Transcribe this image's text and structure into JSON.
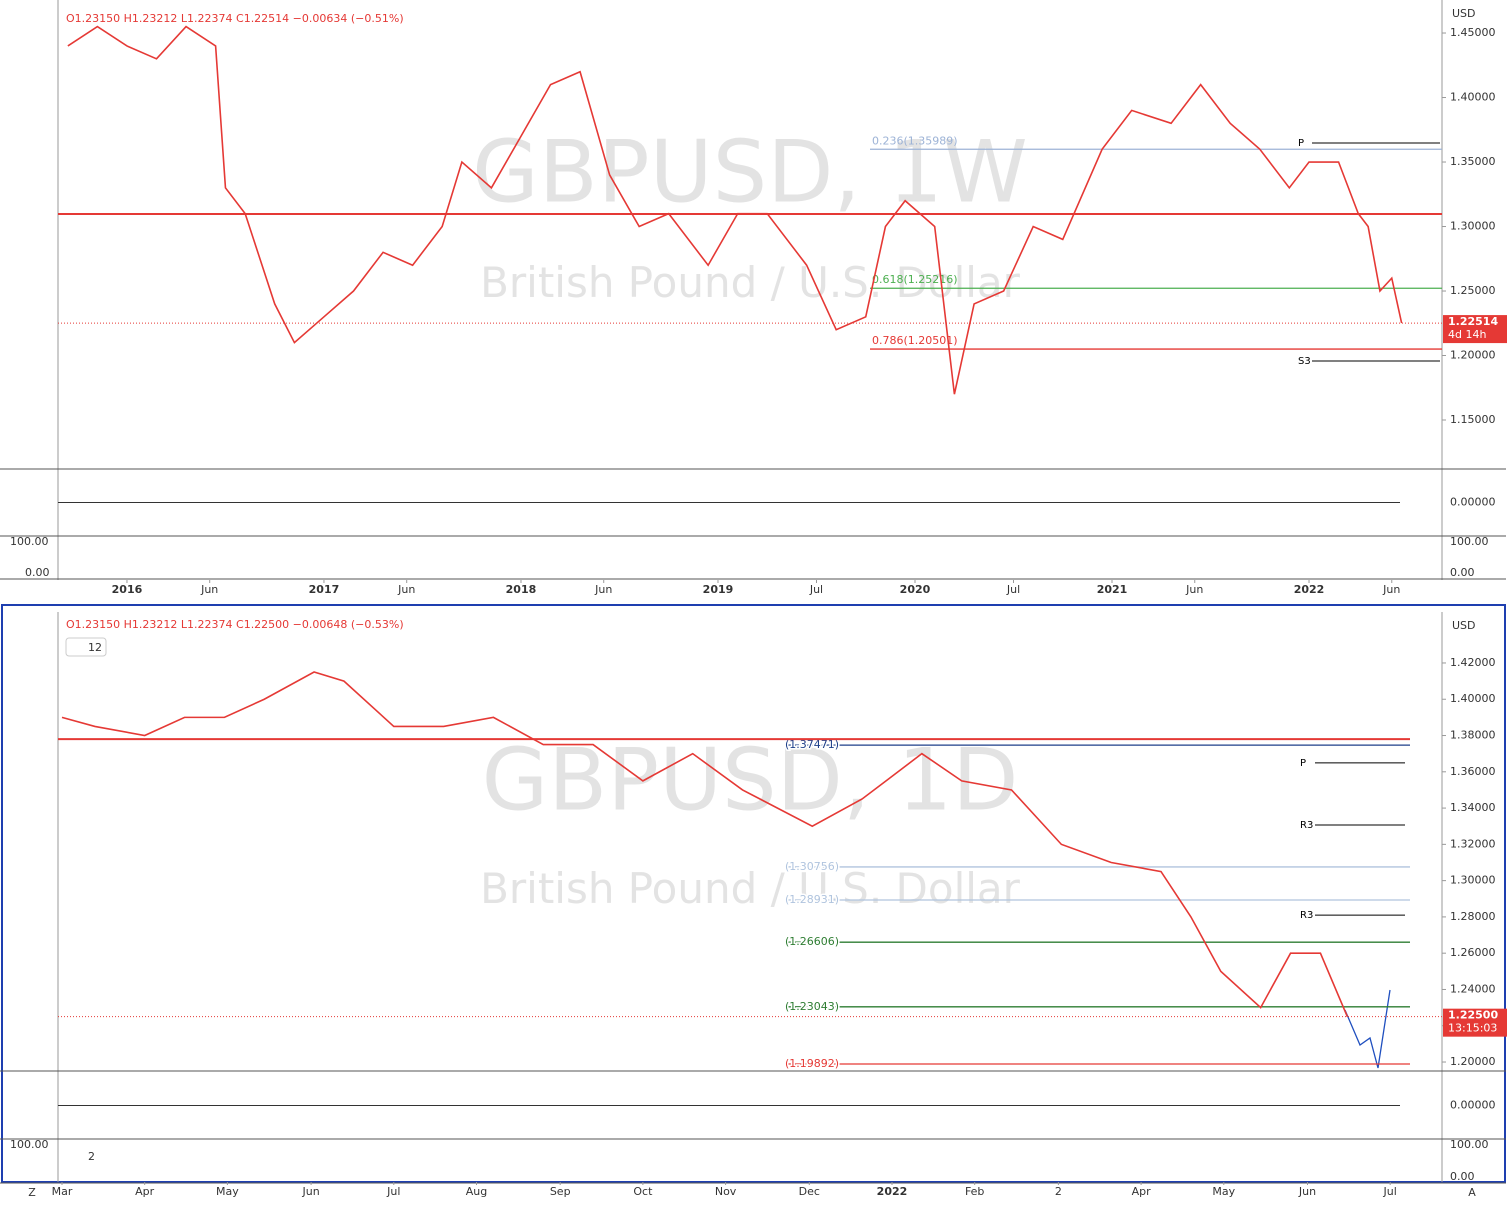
{
  "chart_data": [
    {
      "type": "line",
      "ohlc": "O1.23150 H1.23212 L1.22374 C1.22514 −0.00634 (−0.51%)",
      "watermark": "GBPUSD, 1W",
      "subtitle": "British Pound / U.S. Dollar",
      "currency": "USD",
      "color": "#e53935",
      "x": [
        2015.7,
        2015.85,
        2016.0,
        2016.15,
        2016.3,
        2016.45,
        2016.5,
        2016.6,
        2016.75,
        2016.85,
        2017.0,
        2017.15,
        2017.3,
        2017.45,
        2017.6,
        2017.7,
        2017.85,
        2018.0,
        2018.15,
        2018.3,
        2018.45,
        2018.6,
        2018.75,
        2018.95,
        2019.1,
        2019.25,
        2019.45,
        2019.6,
        2019.75,
        2019.85,
        2019.95,
        2020.1,
        2020.2,
        2020.3,
        2020.45,
        2020.6,
        2020.75,
        2020.95,
        2021.1,
        2021.3,
        2021.45,
        2021.6,
        2021.75,
        2021.9,
        2022.0,
        2022.15,
        2022.25,
        2022.3,
        2022.36,
        2022.42,
        2022.47
      ],
      "values": [
        1.44,
        1.455,
        1.44,
        1.43,
        1.455,
        1.44,
        1.33,
        1.31,
        1.24,
        1.21,
        1.23,
        1.25,
        1.28,
        1.27,
        1.3,
        1.35,
        1.33,
        1.37,
        1.41,
        1.42,
        1.34,
        1.3,
        1.31,
        1.27,
        1.31,
        1.31,
        1.27,
        1.22,
        1.23,
        1.3,
        1.32,
        1.3,
        1.17,
        1.24,
        1.25,
        1.3,
        1.29,
        1.36,
        1.39,
        1.38,
        1.41,
        1.38,
        1.36,
        1.33,
        1.35,
        1.35,
        1.31,
        1.3,
        1.25,
        1.26,
        1.22514
      ],
      "xlim": [
        2015.65,
        2022.675
      ],
      "ylim": [
        1.1128,
        1.4756
      ],
      "xticks": [
        2016,
        {
          "value": 2016.42,
          "label": "Jun"
        },
        2017,
        {
          "value": 2017.42,
          "label": "Jun"
        },
        2018,
        {
          "value": 2018.42,
          "label": "Jun"
        },
        2019,
        {
          "value": 2019.5,
          "label": "Jul"
        },
        2020,
        {
          "value": 2020.5,
          "label": "Jul"
        },
        2021,
        {
          "value": 2021.42,
          "label": "Jun"
        },
        2022,
        {
          "value": 2022.42,
          "label": "Jun"
        }
      ],
      "yticks": [
        {
          "value": 1.15,
          "label": "1.15000"
        },
        {
          "value": 1.2,
          "label": "1.20000"
        },
        {
          "value": 1.25,
          "label": "1.25000"
        },
        {
          "value": 1.3,
          "label": "1.30000"
        },
        {
          "value": 1.35,
          "label": "1.35000"
        },
        {
          "value": 1.4,
          "label": "1.40000"
        },
        {
          "value": 1.45,
          "label": "1.45000"
        }
      ],
      "last_price": 1.22514,
      "countdown": "4d 14h",
      "levels": [
        {
          "value": 1.35989,
          "label": "0.236(1.35989)",
          "color": "#9db3d6"
        },
        {
          "value": 1.25216,
          "label": "0.618(1.25216)",
          "color": "#4caf50"
        },
        {
          "value": 1.20501,
          "label": "0.786(1.20501)",
          "color": "#e53935"
        },
        {
          "value": 1.3097,
          "color": "#e53935"
        }
      ],
      "pivots": [
        {
          "value": 1.3647,
          "label": "P"
        },
        {
          "value": 1.1957,
          "label": "S3"
        }
      ],
      "indicator_labels": [
        "0.00000",
        "100.00",
        "0.00"
      ]
    },
    {
      "type": "line",
      "ohlc": "O1.23150 H1.23212 L1.22374 C1.22500 −0.00648 (−0.53%)",
      "watermark": "GBPUSD, 1D",
      "subtitle": "British Pound / U.S. Dollar",
      "currency": "USD",
      "color": "#e53935",
      "interval_badge": "12",
      "osc_badge": "2",
      "x": [
        2021.167,
        2021.2,
        2021.25,
        2021.29,
        2021.33,
        2021.37,
        2021.42,
        2021.45,
        2021.5,
        2021.55,
        2021.6,
        2021.65,
        2021.7,
        2021.75,
        2021.8,
        2021.85,
        2021.92,
        2021.97,
        2022.03,
        2022.07,
        2022.12,
        2022.17,
        2022.22,
        2022.27,
        2022.3,
        2022.33,
        2022.37,
        2022.4,
        2022.43,
        2022.457
      ],
      "values": [
        1.39,
        1.385,
        1.38,
        1.39,
        1.39,
        1.4,
        1.415,
        1.41,
        1.385,
        1.385,
        1.39,
        1.375,
        1.375,
        1.355,
        1.37,
        1.35,
        1.33,
        1.345,
        1.37,
        1.355,
        1.35,
        1.32,
        1.31,
        1.305,
        1.28,
        1.25,
        1.23,
        1.26,
        1.26,
        1.225
      ],
      "xlim": [
        2021.163,
        2022.552
      ],
      "ylim": [
        1.1956,
        1.4481
      ],
      "xticks": [
        {
          "value": 2021.167,
          "label": "Mar"
        },
        {
          "value": 2021.25,
          "label": "Apr"
        },
        {
          "value": 2021.333,
          "label": "May"
        },
        {
          "value": 2021.417,
          "label": "Jun"
        },
        {
          "value": 2021.5,
          "label": "Jul"
        },
        {
          "value": 2021.583,
          "label": "Aug"
        },
        {
          "value": 2021.667,
          "label": "Sep"
        },
        {
          "value": 2021.75,
          "label": "Oct"
        },
        {
          "value": 2021.833,
          "label": "Nov"
        },
        {
          "value": 2021.917,
          "label": "Dec"
        },
        2022,
        {
          "value": 2022.083,
          "label": "Feb"
        },
        {
          "value": 2022.167,
          "label": "2"
        },
        {
          "value": 2022.25,
          "label": "Apr"
        },
        {
          "value": 2022.333,
          "label": "May"
        },
        {
          "value": 2022.417,
          "label": "Jun"
        },
        {
          "value": 2022.5,
          "label": "Jul"
        }
      ],
      "yticks": [
        {
          "value": 1.2,
          "label": "1.20000"
        },
        {
          "value": 1.22,
          "label": "1.22000"
        },
        {
          "value": 1.24,
          "label": "1.24000"
        },
        {
          "value": 1.26,
          "label": "1.26000"
        },
        {
          "value": 1.28,
          "label": "1.28000"
        },
        {
          "value": 1.3,
          "label": "1.30000"
        },
        {
          "value": 1.32,
          "label": "1.32000"
        },
        {
          "value": 1.34,
          "label": "1.34000"
        },
        {
          "value": 1.36,
          "label": "1.36000"
        },
        {
          "value": 1.38,
          "label": "1.38000"
        },
        {
          "value": 1.4,
          "label": "1.40000"
        },
        {
          "value": 1.42,
          "label": "1.42000"
        }
      ],
      "last_price": {
        "value": 1.225,
        "label": "1.22500"
      },
      "countdown": "13:15:03",
      "levels": [
        {
          "value": 1.37471,
          "label": "(1.37471)",
          "color": "#1e3f8a"
        },
        {
          "value": 1.378,
          "color": "#e53935"
        },
        {
          "value": 1.30756,
          "label": "(1.30756)",
          "color": "#b0c4de"
        },
        {
          "value": 1.28931,
          "label": "(1.28931)",
          "color": "#b0c4de"
        },
        {
          "value": 1.26606,
          "label": "(1.26606)",
          "color": "#2e7d32"
        },
        {
          "value": 1.23043,
          "label": "(1.23043)",
          "color": "#2e7d32"
        },
        {
          "value": 1.19892,
          "label": "(1.19892)",
          "color": "#e53935"
        }
      ],
      "pivots": [
        {
          "value": 1.3649,
          "label": "P"
        },
        {
          "value": 1.3307,
          "label": "R3"
        },
        {
          "value": 1.281,
          "label": "R3"
        }
      ],
      "indicator_labels": [
        "0.00000",
        "100.00",
        "0.00"
      ]
    }
  ],
  "toolbar": {
    "left": "Z",
    "right": "A"
  }
}
